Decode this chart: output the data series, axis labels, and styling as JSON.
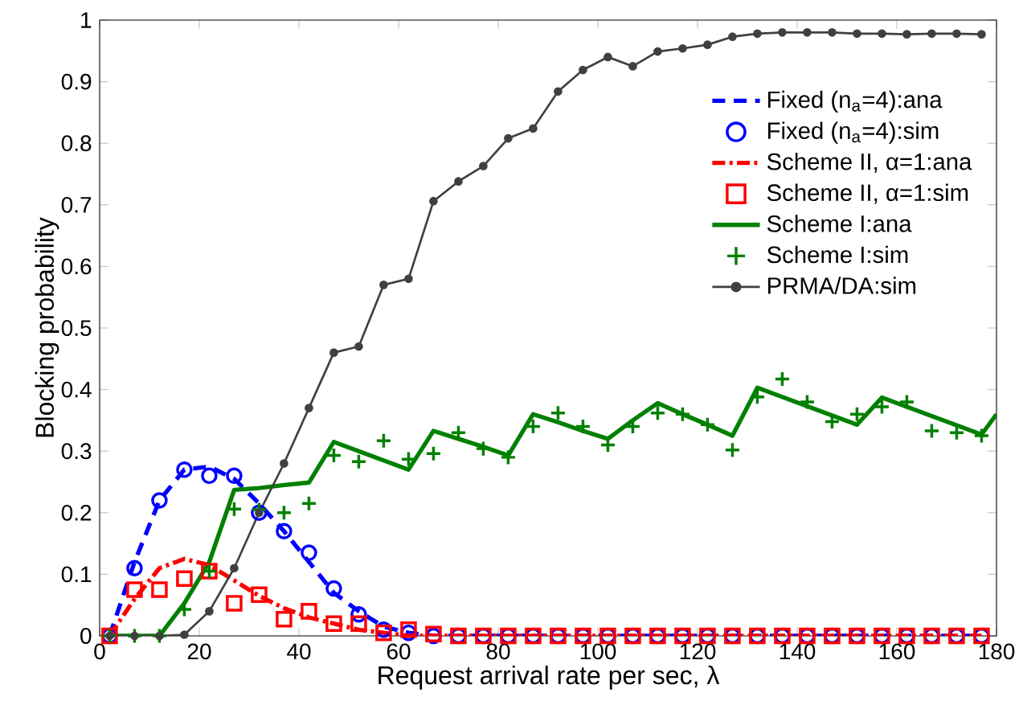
{
  "chart_data": {
    "type": "line",
    "xlabel": "Request arrival rate per sec, λ",
    "ylabel": "Blocking probability",
    "xlim": [
      0,
      180
    ],
    "ylim": [
      0,
      1
    ],
    "xticks": [
      0,
      20,
      40,
      60,
      80,
      100,
      120,
      140,
      160,
      180
    ],
    "yticks": [
      0,
      0.1,
      0.2,
      0.3,
      0.4,
      0.5,
      0.6,
      0.7,
      0.8,
      0.9,
      1
    ],
    "grid": false,
    "legend": "top right",
    "x": [
      2,
      7,
      12,
      17,
      22,
      27,
      32,
      37,
      42,
      47,
      52,
      57,
      62,
      67,
      72,
      77,
      82,
      87,
      92,
      97,
      102,
      107,
      112,
      117,
      122,
      127,
      132,
      137,
      142,
      147,
      152,
      157,
      162,
      167,
      172,
      177
    ],
    "series": [
      {
        "name": "Fixed (n$_{a}$=4):ana",
        "color": "#0000ff",
        "line_style": "dashed",
        "marker": "none",
        "values": [
          0,
          0.12,
          0.22,
          0.27,
          0.275,
          0.255,
          0.215,
          0.17,
          0.12,
          0.07,
          0.04,
          0.015,
          0.005,
          0,
          0,
          0,
          0,
          0,
          0,
          0,
          0,
          0,
          0,
          0,
          0,
          0,
          0,
          0,
          0,
          0,
          0,
          0,
          0,
          0,
          0,
          0
        ]
      },
      {
        "name": "Fixed (n$_{a}$=4):sim",
        "type": "scatter",
        "color": "#0000ff",
        "marker": "circle",
        "values": [
          0,
          0.11,
          0.22,
          0.27,
          0.26,
          0.26,
          0.2,
          0.17,
          0.135,
          0.077,
          0.035,
          0.01,
          0.005,
          0,
          0,
          0,
          0,
          0,
          0,
          0,
          0,
          0,
          0,
          0,
          0,
          0,
          0,
          0,
          0,
          0,
          0,
          0,
          0,
          0,
          0,
          0
        ]
      },
      {
        "name": "Scheme II, α=1:ana",
        "color": "#ff0000",
        "line_style": "dashdot",
        "marker": "none",
        "values": [
          0,
          0.06,
          0.11,
          0.125,
          0.115,
          0.09,
          0.065,
          0.045,
          0.03,
          0.02,
          0.01,
          0.005,
          0,
          0,
          0,
          0,
          0,
          0,
          0,
          0,
          0,
          0,
          0,
          0,
          0,
          0,
          0,
          0,
          0,
          0,
          0,
          0,
          0,
          0,
          0,
          0
        ]
      },
      {
        "name": "Scheme II, α=1:sim",
        "type": "scatter",
        "color": "#ff0000",
        "marker": "square",
        "values": [
          0,
          0.075,
          0.075,
          0.093,
          0.105,
          0.053,
          0.067,
          0.027,
          0.04,
          0.02,
          0.02,
          0.005,
          0.01,
          0.003,
          0,
          0,
          0,
          0,
          0,
          0,
          0,
          0,
          0,
          0,
          0,
          0,
          0,
          0,
          0,
          0,
          0,
          0,
          0,
          0,
          0,
          0
        ]
      },
      {
        "name": "Scheme I:ana",
        "color": "#008000",
        "line_style": "solid",
        "marker": "none",
        "x": [
          2,
          7,
          12,
          17,
          22,
          27,
          32,
          37,
          42,
          47,
          52,
          57,
          62,
          67,
          72,
          77,
          82,
          87,
          92,
          97,
          102,
          107,
          112,
          117,
          122,
          127,
          132,
          137,
          142,
          147,
          152,
          157,
          162,
          167,
          172,
          177,
          180
        ],
        "values": [
          0,
          0,
          0,
          0.053,
          0.12,
          0.237,
          0.24,
          0.245,
          0.249,
          0.315,
          0.3,
          0.285,
          0.27,
          0.333,
          0.32,
          0.307,
          0.293,
          0.36,
          0.347,
          0.333,
          0.32,
          0.35,
          0.378,
          0.36,
          0.343,
          0.325,
          0.403,
          0.388,
          0.373,
          0.358,
          0.343,
          0.387,
          0.372,
          0.357,
          0.342,
          0.327,
          0.36
        ]
      },
      {
        "name": "Scheme I:sim",
        "type": "scatter",
        "color": "#008000",
        "marker": "cross",
        "values": [
          0,
          0,
          0,
          0.043,
          0.105,
          0.206,
          0.205,
          0.2,
          0.215,
          0.293,
          0.283,
          0.317,
          0.287,
          0.296,
          0.33,
          0.304,
          0.29,
          0.34,
          0.362,
          0.34,
          0.31,
          0.34,
          0.362,
          0.36,
          0.343,
          0.302,
          0.388,
          0.417,
          0.38,
          0.348,
          0.36,
          0.372,
          0.38,
          0.333,
          0.33,
          0.325
        ]
      },
      {
        "name": "PRMA/DA:sim",
        "color": "#404040",
        "line_style": "solid",
        "marker": "circle",
        "values": [
          0,
          0,
          0,
          0.002,
          0.04,
          0.11,
          0.2,
          0.28,
          0.37,
          0.46,
          0.47,
          0.57,
          0.58,
          0.706,
          0.738,
          0.763,
          0.808,
          0.824,
          0.884,
          0.919,
          0.94,
          0.925,
          0.949,
          0.954,
          0.96,
          0.973,
          0.978,
          0.98,
          0.98,
          0.98,
          0.978,
          0.978,
          0.977,
          0.978,
          0.978,
          0.977
        ]
      }
    ]
  }
}
